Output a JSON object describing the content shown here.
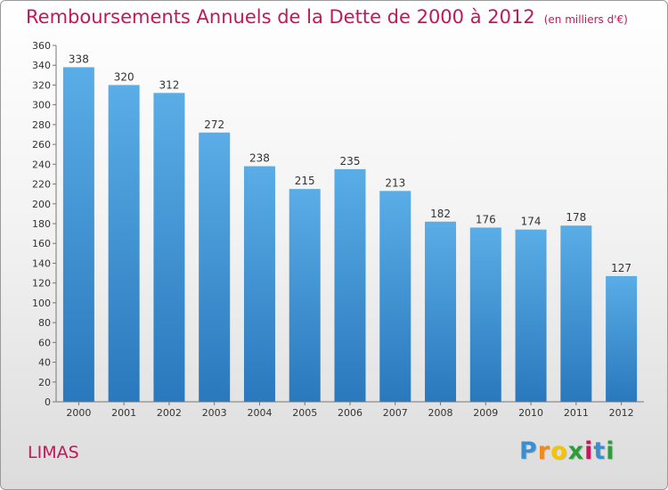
{
  "title": "Remboursements Annuels de la Dette de 2000 à 2012",
  "unit": "(en milliers d'€)",
  "place": "LIMAS",
  "logo": [
    "P",
    "r",
    "o",
    "x",
    "i",
    "t",
    "i"
  ],
  "colors": {
    "bar_top": "#5aade6",
    "bar_bottom": "#2a78bd",
    "title": "#c2185b"
  },
  "chart_data": {
    "type": "bar",
    "title": "Remboursements Annuels de la Dette de 2000 à 2012",
    "categories": [
      "2000",
      "2001",
      "2002",
      "2003",
      "2004",
      "2005",
      "2006",
      "2007",
      "2008",
      "2009",
      "2010",
      "2011",
      "2012"
    ],
    "values": [
      338,
      320,
      312,
      272,
      238,
      215,
      235,
      213,
      182,
      176,
      174,
      178,
      127
    ],
    "ylim": [
      0,
      360
    ],
    "yticks": [
      0,
      20,
      40,
      60,
      80,
      100,
      120,
      140,
      160,
      180,
      200,
      220,
      240,
      260,
      280,
      300,
      320,
      340,
      360
    ],
    "grid": false,
    "data_labels": true
  }
}
